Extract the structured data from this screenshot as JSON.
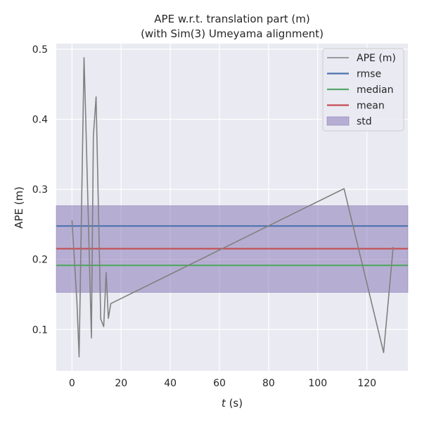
{
  "chart_data": {
    "type": "line",
    "title": "APE w.r.t. translation part (m)",
    "subtitle": "(with Sim(3) Umeyama alignment)",
    "xlabel_var": "t",
    "xlabel_unit": " (s)",
    "ylabel": "APE (m)",
    "xlim": [
      -6.4,
      136.7
    ],
    "ylim": [
      0.041,
      0.508
    ],
    "xticks": [
      0,
      20,
      40,
      60,
      80,
      100,
      120
    ],
    "yticks": [
      0.1,
      0.2,
      0.3,
      0.4,
      0.5
    ],
    "grid": true,
    "legend_position": "top-right",
    "series": [
      {
        "name": "APE (m)",
        "color": "#808080",
        "x": [
          0,
          2.0,
          2.9,
          4.9,
          5.6,
          7.9,
          8.7,
          9.8,
          11.7,
          12.9,
          13.9,
          14.8,
          15.8,
          110.7,
          126.8,
          130.7
        ],
        "y": [
          0.256,
          0.14,
          0.061,
          0.488,
          0.4,
          0.088,
          0.376,
          0.432,
          0.115,
          0.104,
          0.181,
          0.116,
          0.137,
          0.301,
          0.067,
          0.218
        ]
      }
    ],
    "hlines": [
      {
        "name": "rmse",
        "value": 0.2477,
        "color": "#4c72b0"
      },
      {
        "name": "median",
        "value": 0.1915,
        "color": "#55a868"
      },
      {
        "name": "mean",
        "value": 0.2153,
        "color": "#c44e52"
      }
    ],
    "band": {
      "name": "std",
      "lower": 0.153,
      "upper": 0.2766,
      "color": "#8172b2"
    }
  }
}
